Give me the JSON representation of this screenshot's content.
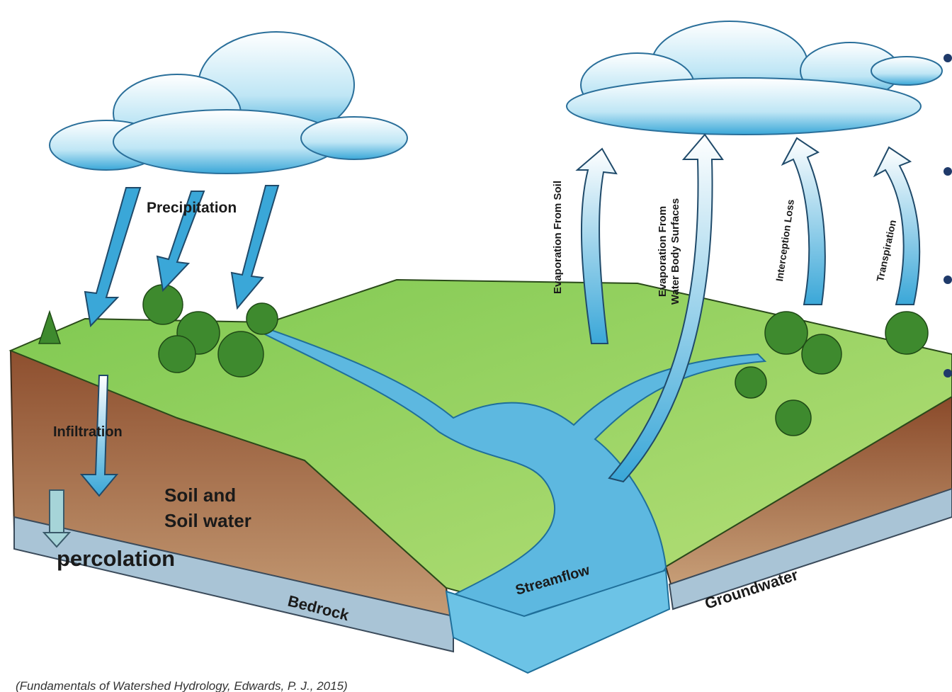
{
  "labels": {
    "precipitation": "Precipitation",
    "evaporation_soil": "Evaporation From Soil",
    "evaporation_water": [
      "Evaporation From",
      "Water Body Surfaces"
    ],
    "interception": "Interception Loss",
    "transpiration": "Transpiration",
    "infiltration": "Infiltration",
    "soil": [
      "Soil and",
      "Soil water"
    ],
    "percolation": "percolation",
    "streamflow": "Streamflow",
    "bedrock": "Bedrock",
    "groundwater": "Groundwater"
  },
  "caption": "(Fundamentals of Watershed Hydrology, Edwards, P. J., 2015)"
}
